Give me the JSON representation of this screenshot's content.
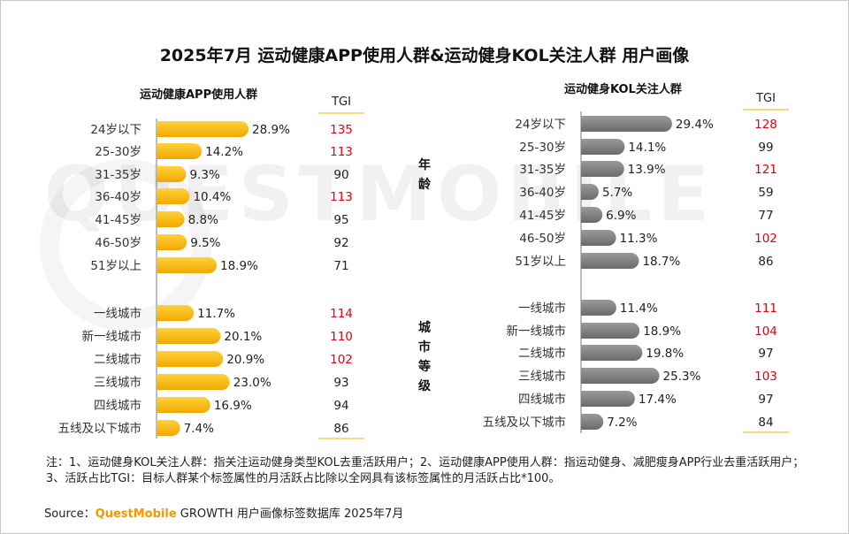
{
  "title": "2025年7月 运动健康APP使用人群&运动健身KOL关注人群 用户画像",
  "section_labels": {
    "age": "年龄",
    "city": "城市等级"
  },
  "watermark": "QUESTMOBILE",
  "colors": {
    "left_bar": "#f5b400",
    "right_bar": "#808080",
    "tgi_high": "#e60012",
    "tgi_normal": "#222222"
  },
  "chart_data": [
    {
      "type": "bar",
      "orientation": "horizontal",
      "title": "运动健康APP使用人群",
      "tgi_header": "TGI",
      "categories": [
        "24岁以下",
        "25-30岁",
        "31-35岁",
        "36-40岁",
        "41-45岁",
        "46-50岁",
        "51岁以上",
        "一线城市",
        "新一线城市",
        "二线城市",
        "三线城市",
        "四线城市",
        "五线及以下城市"
      ],
      "values": [
        28.9,
        14.2,
        9.3,
        10.4,
        8.8,
        9.5,
        18.9,
        11.7,
        20.1,
        20.9,
        23.0,
        16.9,
        7.4
      ],
      "value_labels": [
        "28.9%",
        "14.2%",
        "9.3%",
        "10.4%",
        "8.8%",
        "9.5%",
        "18.9%",
        "11.7%",
        "20.1%",
        "20.9%",
        "23.0%",
        "16.9%",
        "7.4%"
      ],
      "tgi": [
        "135",
        "113",
        "90",
        "113",
        "95",
        "92",
        "71",
        "114",
        "110",
        "102",
        "93",
        "94",
        "86"
      ]
    },
    {
      "type": "bar",
      "orientation": "horizontal",
      "title": "运动健身KOL关注人群",
      "tgi_header": "TGI",
      "categories": [
        "24岁以下",
        "25-30岁",
        "31-35岁",
        "36-40岁",
        "41-45岁",
        "46-50岁",
        "51岁以上",
        "一线城市",
        "新一线城市",
        "二线城市",
        "三线城市",
        "四线城市",
        "五线及以下城市"
      ],
      "values": [
        29.4,
        14.1,
        13.9,
        5.7,
        6.9,
        11.3,
        18.7,
        11.4,
        18.9,
        19.8,
        25.3,
        17.4,
        7.2
      ],
      "value_labels": [
        "29.4%",
        "14.1%",
        "13.9%",
        "5.7%",
        "6.9%",
        "11.3%",
        "18.7%",
        "11.4%",
        "18.9%",
        "19.8%",
        "25.3%",
        "17.4%",
        "7.2%"
      ],
      "tgi": [
        "128",
        "99",
        "121",
        "59",
        "77",
        "102",
        "86",
        "111",
        "104",
        "97",
        "103",
        "97",
        "84"
      ]
    }
  ],
  "note": "注：1、运动健身KOL关注人群：指关注运动健身类型KOL去重活跃用户；2、运动健康APP使用人群：指运动健身、减肥瘦身APP行业去重活跃用户；3、活跃占比TGI：目标人群某个标签属性的月活跃占比除以全网具有该标签属性的月活跃占比*100。",
  "source": {
    "label": "Source：",
    "brand": "QuestMobile",
    "text": " GROWTH 用户画像标签数据库 2025年7月"
  }
}
